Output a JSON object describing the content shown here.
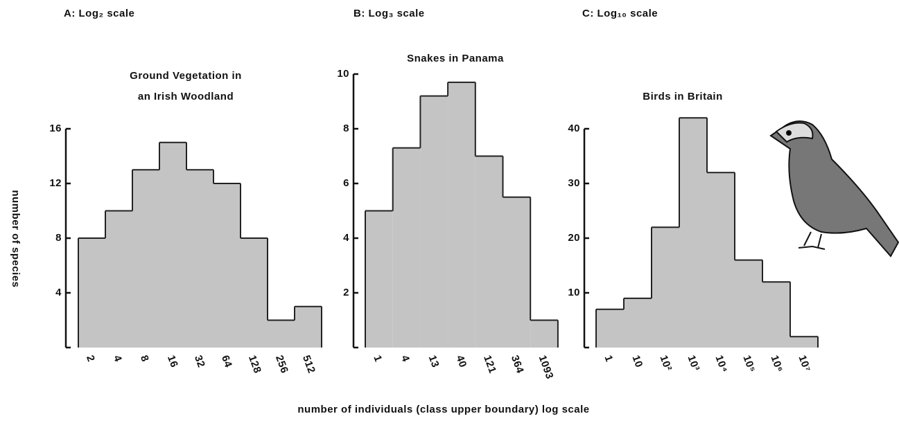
{
  "chart_data": [
    {
      "type": "bar",
      "panel_label": "A: Log₂ scale",
      "title": [
        "Ground Vegetation in",
        "an Irish Woodland"
      ],
      "categories": [
        "2",
        "4",
        "8",
        "16",
        "32",
        "64",
        "128",
        "256",
        "512"
      ],
      "values": [
        8,
        10,
        13,
        15,
        13,
        12,
        8,
        2,
        3
      ],
      "color": "#c4c4c4",
      "ylim": [
        0,
        16
      ],
      "yticks": [
        4,
        8,
        12,
        16
      ]
    },
    {
      "type": "bar",
      "panel_label": "B: Log₃ scale",
      "title": [
        "Snakes in Panama"
      ],
      "categories": [
        "1",
        "4",
        "13",
        "40",
        "121",
        "364",
        "1093"
      ],
      "values": [
        5,
        7.3,
        9.2,
        9.7,
        7,
        5.5,
        1
      ],
      "color": "#c4c4c4",
      "ylim": [
        0,
        10
      ],
      "yticks": [
        2,
        4,
        6,
        8,
        10
      ]
    },
    {
      "type": "bar",
      "panel_label": "C: Log₁₀ scale",
      "title": [
        "Birds in Britain"
      ],
      "categories": [
        "1",
        "10",
        "10²",
        "10³",
        "10⁴",
        "10⁵",
        "10⁶",
        "10⁷"
      ],
      "values": [
        7,
        9,
        22,
        42,
        32,
        16,
        12,
        2
      ],
      "color": "#c4c4c4",
      "ylim": [
        0,
        40
      ],
      "yticks": [
        10,
        20,
        30,
        40
      ]
    }
  ],
  "ylabel": "number of species",
  "xlabel": "number of individuals  (class upper boundary) log scale"
}
